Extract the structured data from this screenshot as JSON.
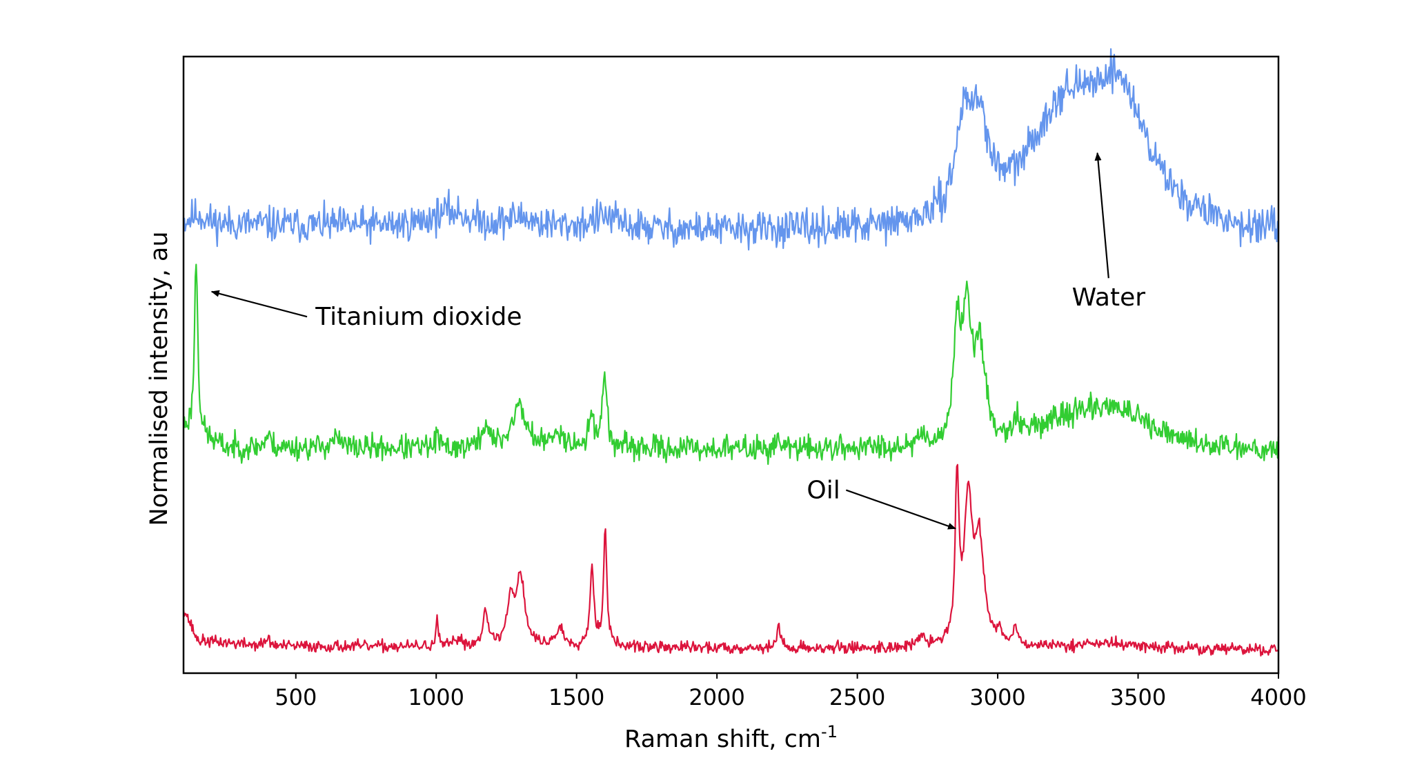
{
  "chart_data": {
    "type": "line",
    "title": "",
    "xlabel": "Raman shift, cm",
    "xlabel_superscript": "-1",
    "ylabel": "Normalised intensity, au",
    "xlim": [
      100,
      4000
    ],
    "ylim": [
      0,
      3.2
    ],
    "x_ticks": [
      500,
      1000,
      1500,
      2000,
      2500,
      3000,
      3500,
      4000
    ],
    "x_tick_labels": [
      "500",
      "1000",
      "1500",
      "2000",
      "2500",
      "3000",
      "3500",
      "4000"
    ],
    "grid": false,
    "y_ticks_shown": false,
    "series": [
      {
        "name": "Water",
        "color": "#6495ED",
        "offset": 2.25,
        "noise": 0.045,
        "seed": 11,
        "baseline": [
          [
            100,
            0.08
          ],
          [
            1000,
            0.06
          ],
          [
            2800,
            0.02
          ],
          [
            4000,
            0.0
          ]
        ],
        "peaks": [
          {
            "center": 150,
            "height": 0.05,
            "width": 30
          },
          {
            "center": 1050,
            "height": 0.08,
            "width": 80
          },
          {
            "center": 1300,
            "height": 0.05,
            "width": 60
          },
          {
            "center": 1600,
            "height": 0.06,
            "width": 60
          },
          {
            "center": 2880,
            "height": 0.45,
            "width": 35
          },
          {
            "center": 2935,
            "height": 0.42,
            "width": 40
          },
          {
            "center": 3230,
            "height": 0.55,
            "width": 150
          },
          {
            "center": 3430,
            "height": 0.65,
            "width": 130
          }
        ]
      },
      {
        "name": "Titanium dioxide",
        "color": "#32CD32",
        "offset": 1.15,
        "noise": 0.032,
        "seed": 23,
        "baseline": [
          [
            100,
            0.12
          ],
          [
            250,
            0.02
          ],
          [
            4000,
            0.0
          ]
        ],
        "peaks": [
          {
            "center": 145,
            "height": 0.92,
            "width": 7
          },
          {
            "center": 400,
            "height": 0.06,
            "width": 12
          },
          {
            "center": 640,
            "height": 0.05,
            "width": 20
          },
          {
            "center": 1003,
            "height": 0.07,
            "width": 6
          },
          {
            "center": 1175,
            "height": 0.12,
            "width": 14
          },
          {
            "center": 1295,
            "height": 0.22,
            "width": 30
          },
          {
            "center": 1440,
            "height": 0.08,
            "width": 25
          },
          {
            "center": 1555,
            "height": 0.16,
            "width": 12
          },
          {
            "center": 1600,
            "height": 0.4,
            "width": 9
          },
          {
            "center": 2220,
            "height": 0.06,
            "width": 8
          },
          {
            "center": 2730,
            "height": 0.05,
            "width": 20
          },
          {
            "center": 2855,
            "height": 0.58,
            "width": 13
          },
          {
            "center": 2890,
            "height": 0.68,
            "width": 18
          },
          {
            "center": 2935,
            "height": 0.48,
            "width": 22
          },
          {
            "center": 3070,
            "height": 0.08,
            "width": 15
          },
          {
            "center": 3250,
            "height": 0.12,
            "width": 170
          },
          {
            "center": 3420,
            "height": 0.17,
            "width": 140
          }
        ]
      },
      {
        "name": "Oil",
        "color": "#DC143C",
        "offset": 0.12,
        "noise": 0.015,
        "seed": 37,
        "baseline": [
          [
            100,
            0.22
          ],
          [
            150,
            0.05
          ],
          [
            400,
            0.02
          ],
          [
            4000,
            0.0
          ]
        ],
        "peaks": [
          {
            "center": 400,
            "height": 0.04,
            "width": 10
          },
          {
            "center": 1003,
            "height": 0.13,
            "width": 5
          },
          {
            "center": 1080,
            "height": 0.04,
            "width": 15
          },
          {
            "center": 1175,
            "height": 0.2,
            "width": 10
          },
          {
            "center": 1265,
            "height": 0.22,
            "width": 15
          },
          {
            "center": 1300,
            "height": 0.36,
            "width": 18
          },
          {
            "center": 1440,
            "height": 0.09,
            "width": 18
          },
          {
            "center": 1555,
            "height": 0.4,
            "width": 9
          },
          {
            "center": 1602,
            "height": 0.62,
            "width": 7
          },
          {
            "center": 2220,
            "height": 0.12,
            "width": 7
          },
          {
            "center": 2730,
            "height": 0.05,
            "width": 15
          },
          {
            "center": 2855,
            "height": 0.82,
            "width": 8
          },
          {
            "center": 2895,
            "height": 0.72,
            "width": 18
          },
          {
            "center": 2935,
            "height": 0.52,
            "width": 20
          },
          {
            "center": 3010,
            "height": 0.06,
            "width": 12
          },
          {
            "center": 3065,
            "height": 0.11,
            "width": 9
          },
          {
            "center": 3380,
            "height": 0.03,
            "width": 150
          }
        ]
      }
    ],
    "annotations": [
      {
        "label": "Water",
        "text_x": 3395,
        "text_y": 1.95,
        "arrow_tail": [
          3395,
          2.05
        ],
        "arrow_head": [
          3355,
          2.7
        ]
      },
      {
        "label": "Titanium dioxide",
        "text_x": 570,
        "text_y": 1.85,
        "arrow_tail": [
          540,
          1.85
        ],
        "arrow_head": [
          200,
          1.98
        ]
      },
      {
        "label": "Oil",
        "text_x": 2320,
        "text_y": 0.95,
        "arrow_tail": [
          2460,
          0.95
        ],
        "arrow_head": [
          2850,
          0.75
        ]
      }
    ]
  }
}
